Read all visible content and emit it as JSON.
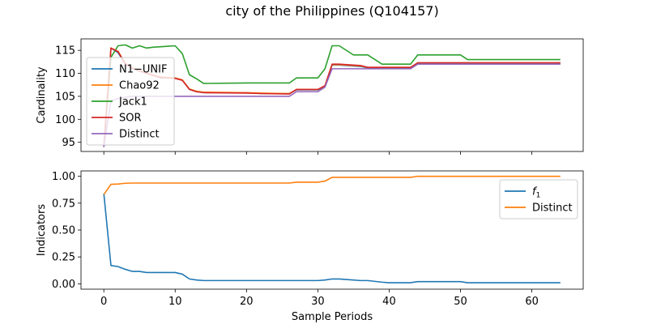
{
  "chart_data": {
    "title": "city of the Philippines (Q104157)",
    "x_tick_labels": [
      "0",
      "10",
      "20",
      "30",
      "40",
      "50",
      "60"
    ],
    "xlabel": "Sample Periods",
    "xlim": [
      -3.2,
      67.2
    ],
    "subplots": [
      {
        "type": "line",
        "ylabel": "Cardinality",
        "ylim": [
          93,
          117.5
        ],
        "yticks": [
          95,
          100,
          105,
          110,
          115
        ],
        "y_tick_labels": [
          "95",
          "100",
          "105",
          "110",
          "115"
        ],
        "legend_position": "upper-left",
        "series": [
          {
            "name": "N1−UNIF",
            "color": "#1f77b4",
            "x": [
              0,
              1,
              2,
              3,
              4,
              5,
              6,
              7,
              8,
              9,
              10,
              11,
              12,
              13,
              14,
              20,
              22,
              26,
              27,
              30,
              31,
              32,
              33,
              36,
              37,
              40,
              43,
              44,
              50,
              51,
              64
            ],
            "y": [
              94,
              115.5,
              114.5,
              112,
              111,
              110.5,
              110,
              109.5,
              109,
              109,
              109,
              108.5,
              106.5,
              106,
              105.8,
              105.8,
              105.6,
              105.6,
              106.4,
              106.4,
              107.2,
              111.8,
              111.8,
              111.5,
              111.2,
              111.2,
              111.2,
              112.2,
              112.2,
              112.2,
              112.2
            ]
          },
          {
            "name": "Chao92",
            "color": "#ff7f0e",
            "x": [
              0,
              1,
              2,
              3,
              4,
              5,
              6,
              7,
              8,
              9,
              10,
              11,
              12,
              13,
              14,
              20,
              22,
              26,
              27,
              30,
              31,
              32,
              33,
              36,
              37,
              40,
              43,
              44,
              50,
              51,
              64
            ],
            "y": [
              94,
              115.5,
              114.8,
              112.2,
              111.2,
              110.6,
              110.1,
              109.6,
              109.2,
              109.1,
              109,
              108.6,
              106.6,
              106.1,
              105.9,
              105.8,
              105.7,
              105.6,
              106.5,
              106.5,
              107.3,
              111.9,
              111.9,
              111.6,
              111.3,
              111.3,
              111.3,
              112.3,
              112.3,
              112.3,
              112.3
            ]
          },
          {
            "name": "Jack1",
            "color": "#2ca02c",
            "x": [
              0,
              1,
              2,
              3,
              4,
              5,
              6,
              7,
              8,
              9,
              10,
              11,
              12,
              13,
              14,
              20,
              26,
              27,
              30,
              31,
              32,
              33,
              35,
              37,
              39,
              43,
              44,
              50,
              51,
              64
            ],
            "y": [
              94,
              113.5,
              116,
              116.2,
              115.5,
              116,
              115.5,
              115.7,
              115.8,
              115.9,
              116,
              114.3,
              109.7,
              108.8,
              107.8,
              107.9,
              107.9,
              109,
              109,
              111,
              116,
              116,
              114,
              114,
              112,
              112,
              114,
              114,
              113,
              113
            ]
          },
          {
            "name": "SOR",
            "color": "#d62728",
            "x": [
              0,
              1,
              2,
              3,
              4,
              5,
              6,
              7,
              8,
              9,
              10,
              11,
              12,
              13,
              14,
              20,
              22,
              26,
              27,
              30,
              31,
              32,
              33,
              36,
              37,
              40,
              43,
              44,
              50,
              51,
              64
            ],
            "y": [
              94,
              115.5,
              114.7,
              112.1,
              111.1,
              110.5,
              110,
              109.5,
              109.1,
              109,
              108.9,
              108.5,
              106.5,
              106,
              105.8,
              105.7,
              105.6,
              105.5,
              106.5,
              106.5,
              107.3,
              112,
              112,
              111.7,
              111.3,
              111.3,
              111.3,
              112.3,
              112.3,
              112.3,
              112.3
            ]
          },
          {
            "name": "Distinct",
            "color": "#9467bd",
            "x": [
              0,
              1,
              2,
              3,
              4,
              14,
              26,
              27,
              30,
              31,
              32,
              33,
              43,
              44,
              64
            ],
            "y": [
              94,
              104,
              104.5,
              104.8,
              105,
              105,
              105,
              106,
              106,
              107,
              111,
              111,
              111,
              112,
              112
            ]
          }
        ]
      },
      {
        "type": "line",
        "ylabel": "Indicators",
        "ylim": [
          -0.05,
          1.05
        ],
        "yticks": [
          0,
          0.25,
          0.5,
          0.75,
          1
        ],
        "y_tick_labels": [
          "0.00",
          "0.25",
          "0.50",
          "0.75",
          "1.00"
        ],
        "legend_position": "upper-right",
        "series": [
          {
            "name": "f1",
            "color": "#1f77b4",
            "x": [
              0,
              1,
              2,
              3,
              4,
              5,
              6,
              7,
              8,
              9,
              10,
              11,
              12,
              13,
              14,
              20,
              26,
              27,
              30,
              31,
              32,
              33,
              34,
              36,
              37,
              39,
              40,
              43,
              44,
              50,
              51,
              64
            ],
            "y": [
              0.84,
              0.17,
              0.16,
              0.135,
              0.115,
              0.115,
              0.105,
              0.105,
              0.105,
              0.105,
              0.105,
              0.09,
              0.045,
              0.035,
              0.03,
              0.03,
              0.03,
              0.03,
              0.03,
              0.035,
              0.045,
              0.045,
              0.04,
              0.03,
              0.03,
              0.015,
              0.01,
              0.01,
              0.02,
              0.02,
              0.01,
              0.01
            ]
          },
          {
            "name": "Distinct",
            "color": "#ff7f0e",
            "x": [
              0,
              1,
              2,
              3,
              4,
              14,
              26,
              27,
              30,
              31,
              32,
              33,
              43,
              44,
              64
            ],
            "y": [
              0.83,
              0.925,
              0.928,
              0.935,
              0.937,
              0.937,
              0.937,
              0.945,
              0.945,
              0.955,
              0.99,
              0.99,
              0.99,
              1.0,
              1.0
            ]
          }
        ]
      }
    ]
  }
}
